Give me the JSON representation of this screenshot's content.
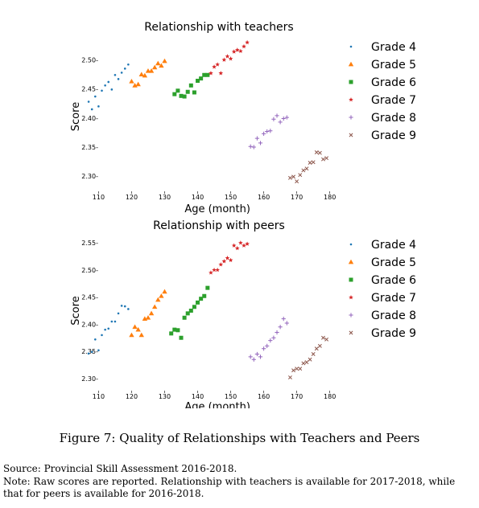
{
  "figure": {
    "caption": "Figure 7: Quality of Relationships with Teachers and Peers",
    "source": "Source: Provincial Skill Assessment 2016-2018.",
    "note": "Note: Raw scores are reported. Relationship with teachers is available for 2017-2018, while that for peers is available for 2016-2018."
  },
  "chart_data": [
    {
      "type": "scatter",
      "title": "Relationship with teachers",
      "xlabel": "Age (month)",
      "ylabel": "Score",
      "xlim": [
        106,
        183
      ],
      "ylim": [
        2.285,
        2.52
      ],
      "xticks": [
        110,
        120,
        130,
        140,
        150,
        160,
        170,
        180
      ],
      "yticks": [
        2.3,
        2.35,
        2.4,
        2.45,
        2.5
      ],
      "ytick_labels": [
        "2.30-",
        "2.35-",
        "2.40-",
        "2.45-",
        "2.50-"
      ],
      "legend_position": "right",
      "series": [
        {
          "name": "Grade 4",
          "marker": "dot",
          "color": "#1f77b4",
          "x": [
            107,
            108,
            109,
            110,
            111,
            112,
            113,
            114,
            115,
            116,
            117,
            118,
            119
          ],
          "y": [
            2.428,
            2.415,
            2.437,
            2.42,
            2.447,
            2.456,
            2.462,
            2.449,
            2.474,
            2.467,
            2.478,
            2.485,
            2.492
          ]
        },
        {
          "name": "Grade 5",
          "marker": "triangle",
          "color": "#ff7f0e",
          "x": [
            120,
            121,
            122,
            123,
            124,
            125,
            126,
            127,
            128,
            129,
            130
          ],
          "y": [
            2.463,
            2.456,
            2.458,
            2.475,
            2.473,
            2.481,
            2.481,
            2.487,
            2.494,
            2.49,
            2.498
          ]
        },
        {
          "name": "Grade 6",
          "marker": "square",
          "color": "#2ca02c",
          "x": [
            133,
            134,
            135,
            136,
            137,
            138,
            139,
            140,
            141,
            142,
            143
          ],
          "y": [
            2.441,
            2.447,
            2.438,
            2.437,
            2.445,
            2.456,
            2.444,
            2.464,
            2.468,
            2.474,
            2.474
          ]
        },
        {
          "name": "Grade 7",
          "marker": "star",
          "color": "#d62728",
          "x": [
            144,
            145,
            146,
            147,
            148,
            149,
            150,
            151,
            152,
            153,
            154,
            155
          ],
          "y": [
            2.477,
            2.488,
            2.492,
            2.477,
            2.5,
            2.506,
            2.502,
            2.514,
            2.517,
            2.515,
            2.523,
            2.53
          ]
        },
        {
          "name": "Grade 8",
          "marker": "plus",
          "color": "#9467bd",
          "x": [
            156,
            157,
            158,
            159,
            160,
            161,
            162,
            163,
            164,
            165,
            166,
            167
          ],
          "y": [
            2.351,
            2.35,
            2.365,
            2.357,
            2.373,
            2.377,
            2.378,
            2.398,
            2.404,
            2.393,
            2.399,
            2.401
          ]
        },
        {
          "name": "Grade 9",
          "marker": "x",
          "color": "#8c564b",
          "x": [
            168,
            169,
            170,
            171,
            172,
            173,
            174,
            175,
            176,
            177,
            178,
            179
          ],
          "y": [
            2.297,
            2.299,
            2.291,
            2.302,
            2.31,
            2.313,
            2.323,
            2.324,
            2.341,
            2.34,
            2.329,
            2.331
          ]
        }
      ]
    },
    {
      "type": "scatter",
      "title": "Relationship with peers",
      "xlabel": "Age (month)",
      "ylabel": "Score",
      "xlim": [
        106,
        183
      ],
      "ylim": [
        2.285,
        2.565
      ],
      "xticks": [
        110,
        120,
        130,
        140,
        150,
        160,
        170,
        180
      ],
      "yticks": [
        2.3,
        2.35,
        2.4,
        2.45,
        2.5,
        2.55
      ],
      "ytick_labels": [
        "2.30-",
        "2.35-",
        "2.40-",
        "2.45-",
        "2.50-",
        "2.55-"
      ],
      "legend_position": "right",
      "series": [
        {
          "name": "Grade 4",
          "marker": "dot",
          "color": "#1f77b4",
          "x": [
            107,
            108,
            109,
            110,
            111,
            112,
            113,
            114,
            115,
            116,
            117,
            118,
            119
          ],
          "y": [
            2.346,
            2.349,
            2.372,
            2.352,
            2.38,
            2.39,
            2.392,
            2.405,
            2.405,
            2.42,
            2.434,
            2.433,
            2.428
          ]
        },
        {
          "name": "Grade 5",
          "marker": "triangle",
          "color": "#ff7f0e",
          "x": [
            120,
            121,
            122,
            123,
            124,
            125,
            126,
            127,
            128,
            129,
            130
          ],
          "y": [
            2.38,
            2.395,
            2.39,
            2.38,
            2.41,
            2.412,
            2.42,
            2.432,
            2.445,
            2.452,
            2.46
          ]
        },
        {
          "name": "Grade 6",
          "marker": "square",
          "color": "#2ca02c",
          "x": [
            132,
            133,
            134,
            135,
            136,
            137,
            138,
            139,
            140,
            141,
            142,
            143
          ],
          "y": [
            2.383,
            2.39,
            2.389,
            2.375,
            2.412,
            2.42,
            2.425,
            2.432,
            2.44,
            2.447,
            2.452,
            2.467
          ]
        },
        {
          "name": "Grade 7",
          "marker": "star",
          "color": "#d62728",
          "x": [
            144,
            145,
            146,
            147,
            148,
            149,
            150,
            151,
            152,
            153,
            154,
            155
          ],
          "y": [
            2.495,
            2.5,
            2.5,
            2.51,
            2.516,
            2.522,
            2.518,
            2.545,
            2.54,
            2.55,
            2.545,
            2.548
          ]
        },
        {
          "name": "Grade 8",
          "marker": "plus",
          "color": "#9467bd",
          "x": [
            156,
            157,
            158,
            159,
            160,
            161,
            162,
            163,
            164,
            165,
            166,
            167
          ],
          "y": [
            2.34,
            2.335,
            2.345,
            2.34,
            2.355,
            2.36,
            2.37,
            2.375,
            2.385,
            2.395,
            2.41,
            2.402
          ]
        },
        {
          "name": "Grade 9",
          "marker": "x",
          "color": "#8c564b",
          "x": [
            168,
            169,
            170,
            171,
            172,
            173,
            174,
            175,
            176,
            177,
            178,
            179
          ],
          "y": [
            2.302,
            2.315,
            2.318,
            2.318,
            2.328,
            2.33,
            2.335,
            2.345,
            2.355,
            2.36,
            2.375,
            2.372
          ]
        }
      ]
    }
  ]
}
